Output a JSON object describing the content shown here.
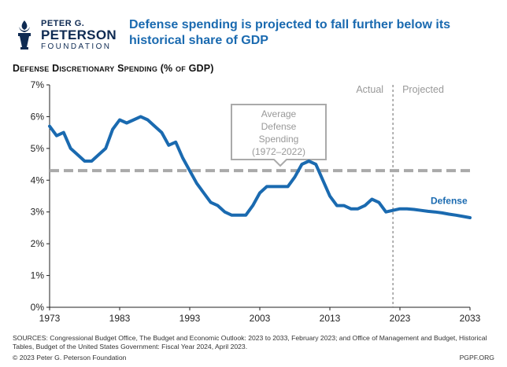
{
  "logo": {
    "line1": "PETER G.",
    "line2": "PETERSON",
    "line3": "FOUNDATION",
    "color": "#0e2a52"
  },
  "headline": {
    "line1": "Defense spending is projected to fall further below its",
    "line2": "historical share of GDP"
  },
  "colors": {
    "headline": "#1a6ab0",
    "series": "#1a6ab0",
    "average_line": "#aaaaaa",
    "axis": "#222222"
  },
  "chart_data": {
    "type": "line",
    "title": "Defense Discretionary Spending (% of GDP)",
    "xlabel": "",
    "ylabel": "",
    "xlim": [
      1973,
      2033
    ],
    "ylim": [
      0,
      7
    ],
    "x_ticks": [
      "1973",
      "1983",
      "1993",
      "2003",
      "2013",
      "2023",
      "2033"
    ],
    "y_ticks": [
      "0%",
      "1%",
      "2%",
      "3%",
      "4%",
      "5%",
      "6%",
      "7%"
    ],
    "grid": false,
    "regions": {
      "actual": "Actual",
      "projected": "Projected",
      "divider_x": 2022
    },
    "series": [
      {
        "name": "Defense",
        "color": "#1a6ab0",
        "x": [
          1973,
          1974,
          1975,
          1976,
          1977,
          1978,
          1979,
          1980,
          1981,
          1982,
          1983,
          1984,
          1985,
          1986,
          1987,
          1988,
          1989,
          1990,
          1991,
          1992,
          1993,
          1994,
          1995,
          1996,
          1997,
          1998,
          1999,
          2000,
          2001,
          2002,
          2003,
          2004,
          2005,
          2006,
          2007,
          2008,
          2009,
          2010,
          2011,
          2012,
          2013,
          2014,
          2015,
          2016,
          2017,
          2018,
          2019,
          2020,
          2021,
          2022,
          2023,
          2024,
          2025,
          2026,
          2027,
          2028,
          2029,
          2030,
          2031,
          2032,
          2033
        ],
        "values": [
          5.7,
          5.4,
          5.5,
          5.0,
          4.8,
          4.6,
          4.6,
          4.8,
          5.0,
          5.6,
          5.9,
          5.8,
          5.9,
          6.0,
          5.9,
          5.7,
          5.5,
          5.1,
          5.2,
          4.7,
          4.3,
          3.9,
          3.6,
          3.3,
          3.2,
          3.0,
          2.9,
          2.9,
          2.9,
          3.2,
          3.6,
          3.8,
          3.8,
          3.8,
          3.8,
          4.1,
          4.5,
          4.6,
          4.5,
          4.0,
          3.5,
          3.2,
          3.2,
          3.1,
          3.1,
          3.2,
          3.4,
          3.3,
          3.0,
          3.05,
          3.1,
          3.1,
          3.08,
          3.05,
          3.02,
          3.0,
          2.97,
          2.93,
          2.9,
          2.86,
          2.82
        ]
      }
    ],
    "average": {
      "value": 4.3,
      "label_lines": [
        "Average",
        "Defense",
        "Spending",
        "(1972–2022)"
      ]
    }
  },
  "footer": {
    "sources": "SOURCES: Congressional Budget Office, The Budget and Economic Outlook: 2023 to 2033, February 2023; and Office of Management and Budget, Historical Tables, Budget of the United States Government: Fiscal Year 2024, April 2023.",
    "copyright": "© 2023 Peter G. Peterson Foundation",
    "url": "PGPF.ORG"
  }
}
